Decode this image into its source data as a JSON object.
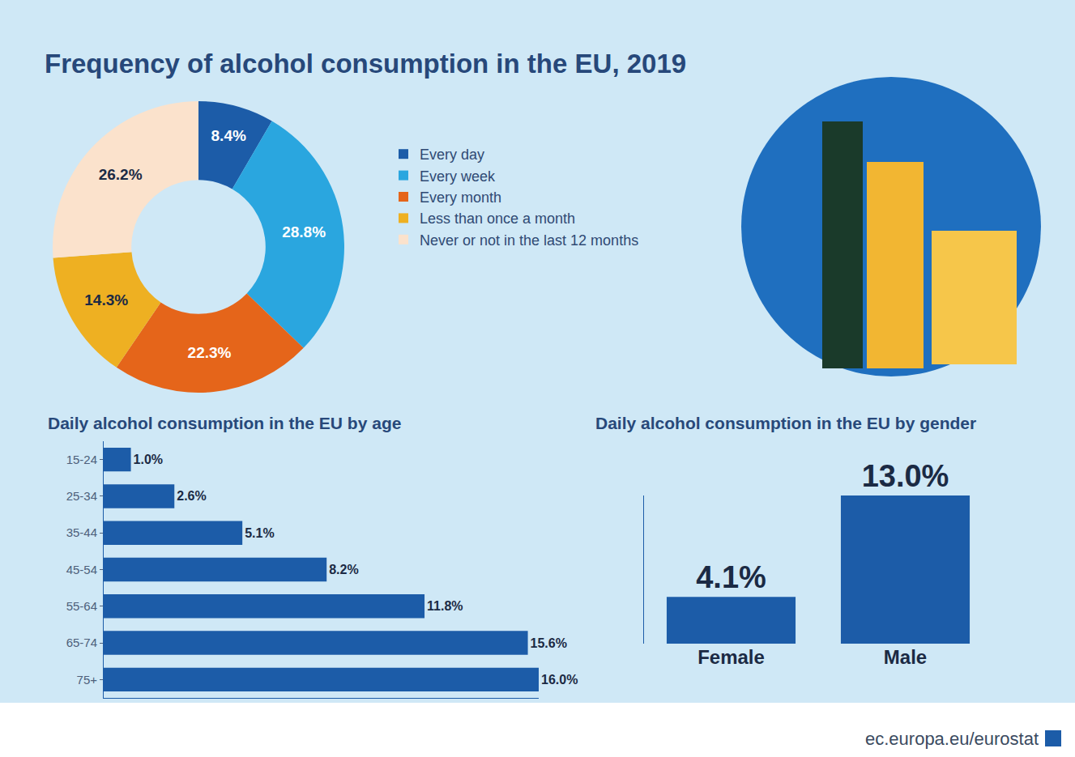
{
  "chart_data": [
    {
      "type": "pie",
      "title": "Frequency of alcohol consumption in the EU, 2019",
      "categories": [
        "Every day",
        "Every week",
        "Every month",
        "Less than once a month",
        "Never or not in the last 12 months"
      ],
      "values": [
        8.4,
        28.8,
        22.3,
        14.3,
        26.2
      ],
      "value_labels": [
        "8.4%",
        "28.8%",
        "22.3%",
        "14.3%",
        "26.2%"
      ],
      "colors": [
        "#1c5ca8",
        "#2aa6df",
        "#e5651a",
        "#eeb022",
        "#fbe2cc"
      ],
      "data_labels": true,
      "legend": "right",
      "annotations": [
        "ec.europa.eu/eurostat"
      ]
    },
    {
      "type": "bar",
      "title": "Daily alcohol consumption in the EU by age",
      "orientation": "horizontal",
      "categories": [
        "15-24",
        "25-34",
        "35-44",
        "45-54",
        "55-64",
        "65-74",
        "75+"
      ],
      "values": [
        1.0,
        2.6,
        5.1,
        8.2,
        11.8,
        15.6,
        16.0
      ],
      "value_labels": [
        "1.0%",
        "2.6%",
        "5.1%",
        "8.2%",
        "11.8%",
        "15.6%",
        "16.0%"
      ],
      "xlim": [
        0,
        16
      ],
      "color": "#1c5ca8",
      "data_labels": true,
      "tick_labels": "y",
      "grid": false
    },
    {
      "type": "bar",
      "title": "Daily alcohol consumption in the EU by gender",
      "categories": [
        "Female",
        "Male"
      ],
      "values": [
        4.1,
        13.0
      ],
      "value_labels": [
        "4.1%",
        "13.0%"
      ],
      "ylim": [
        0,
        13
      ],
      "color": "#1c5ca8",
      "data_labels": true,
      "tick_labels": "x",
      "grid": false
    }
  ]
}
